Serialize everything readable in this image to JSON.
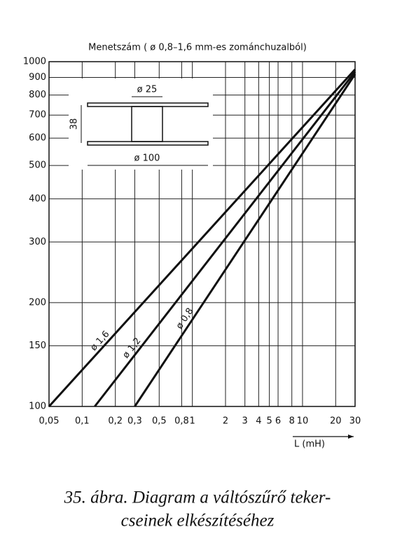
{
  "chart_data": {
    "type": "line",
    "title": "Menetszám ( ø 0,8–1,6 mm-es zománchuzalból)",
    "x_label": "L (mH)",
    "xscale": "log",
    "yscale": "log",
    "grid": true,
    "xlim": [
      0.05,
      30
    ],
    "ylim": [
      100,
      1000
    ],
    "xticks": [
      {
        "value": 0.05,
        "label": "0,05"
      },
      {
        "value": 0.1,
        "label": "0,1"
      },
      {
        "value": 0.2,
        "label": "0,2"
      },
      {
        "value": 0.3,
        "label": "0,3"
      },
      {
        "value": 0.5,
        "label": "0,5"
      },
      {
        "value": 0.8,
        "label": "0,8"
      },
      1,
      2,
      3,
      4,
      5,
      6,
      8,
      10,
      20,
      30
    ],
    "yticks": [
      100,
      150,
      200,
      300,
      400,
      500,
      600,
      700,
      800,
      900,
      1000
    ],
    "series": [
      {
        "name": "ø 1,6",
        "color": "#111",
        "x": [
          0.05,
          30
        ],
        "values": [
          100,
          950
        ]
      },
      {
        "name": "ø 1,2",
        "color": "#111",
        "x": [
          0.13,
          30
        ],
        "values": [
          100,
          935
        ]
      },
      {
        "name": "ø 0,8",
        "color": "#111",
        "x": [
          0.3,
          30
        ],
        "values": [
          100,
          920
        ]
      }
    ],
    "annotations": [
      "ø 25",
      "38",
      "ø 100"
    ]
  },
  "caption": [
    "35. ábra. Diagram a váltószűrő teker-",
    "cseinek elkészítéséhez"
  ]
}
